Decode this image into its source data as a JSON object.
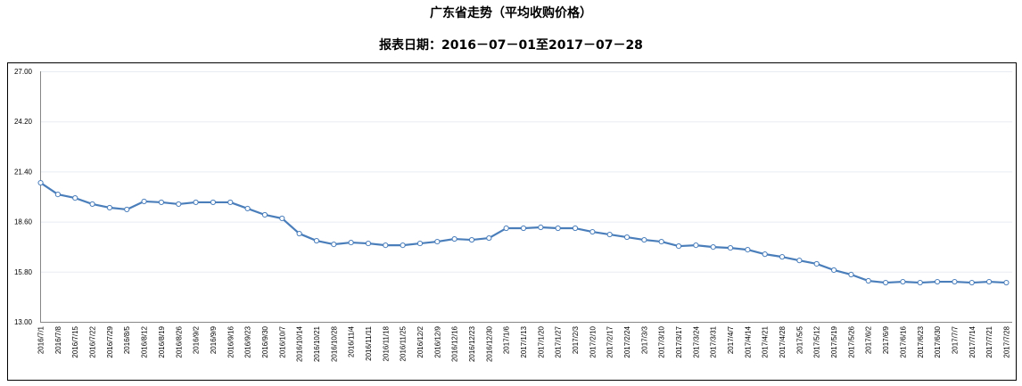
{
  "chart_data": {
    "type": "line",
    "title": "广东省走势（平均收购价格）",
    "subtitle": "报表日期：2016－07－01至2017－07－28",
    "xlabel": "",
    "ylabel": "",
    "ylim": [
      13.0,
      27.0
    ],
    "yticks": [
      "13.00",
      "15.80",
      "18.60",
      "21.40",
      "24.20",
      "27.00"
    ],
    "grid": true,
    "legend": "none",
    "line_color": "#4a7ebb",
    "categories": [
      "2016/7/1",
      "2016/7/8",
      "2016/7/15",
      "2016/7/22",
      "2016/7/29",
      "2016/8/5",
      "2016/8/12",
      "2016/8/19",
      "2016/8/26",
      "2016/9/2",
      "2016/9/9",
      "2016/9/16",
      "2016/9/23",
      "2016/9/30",
      "2016/10/7",
      "2016/10/14",
      "2016/10/21",
      "2016/10/28",
      "2016/11/4",
      "2016/11/11",
      "2016/11/18",
      "2016/11/25",
      "2016/12/2",
      "2016/12/9",
      "2016/12/16",
      "2016/12/23",
      "2016/12/30",
      "2017/1/6",
      "2017/1/13",
      "2017/1/20",
      "2017/1/27",
      "2017/2/3",
      "2017/2/10",
      "2017/2/17",
      "2017/2/24",
      "2017/3/3",
      "2017/3/10",
      "2017/3/17",
      "2017/3/24",
      "2017/3/31",
      "2017/4/7",
      "2017/4/14",
      "2017/4/21",
      "2017/4/28",
      "2017/5/5",
      "2017/5/12",
      "2017/5/19",
      "2017/5/26",
      "2017/6/2",
      "2017/6/9",
      "2017/6/16",
      "2017/6/23",
      "2017/6/30",
      "2017/7/7",
      "2017/7/14",
      "2017/7/21",
      "2017/7/28"
    ],
    "series": [
      {
        "name": "广东省",
        "values": [
          20.77,
          20.12,
          19.92,
          19.58,
          19.38,
          19.28,
          19.73,
          19.68,
          19.58,
          19.68,
          19.68,
          19.68,
          19.33,
          18.98,
          18.78,
          17.93,
          17.53,
          17.33,
          17.43,
          17.38,
          17.28,
          17.28,
          17.38,
          17.48,
          17.63,
          17.58,
          17.68,
          18.23,
          18.23,
          18.28,
          18.23,
          18.23,
          18.03,
          17.88,
          17.73,
          17.58,
          17.48,
          17.23,
          17.28,
          17.18,
          17.13,
          17.03,
          16.78,
          16.63,
          16.43,
          16.24,
          15.89,
          15.64,
          15.29,
          15.19,
          15.24,
          15.19,
          15.24,
          15.24,
          15.19,
          15.24,
          15.19
        ]
      }
    ]
  }
}
